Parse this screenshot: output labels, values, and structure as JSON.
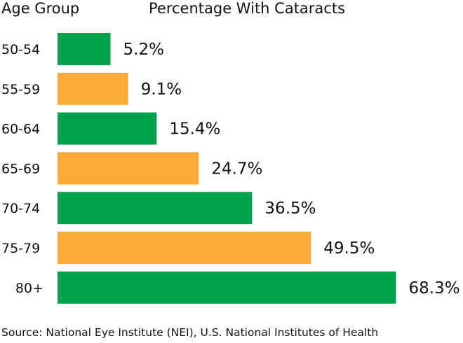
{
  "chart_data": {
    "type": "bar",
    "orientation": "horizontal",
    "column_headers": [
      "Age Group",
      "Percentage With Cataracts"
    ],
    "categories": [
      "50-54",
      "55-59",
      "60-64",
      "65-69",
      "70-74",
      "75-79",
      "80+"
    ],
    "values": [
      5.2,
      9.1,
      15.4,
      24.7,
      36.5,
      49.5,
      68.3
    ],
    "value_labels": [
      "5.2%",
      "9.1%",
      "15.4%",
      "24.7%",
      "36.5%",
      "49.5%",
      "68.3%"
    ],
    "colors": [
      "#00a04d",
      "#fbaa38",
      "#00a04d",
      "#fbaa38",
      "#00a04d",
      "#fbaa38",
      "#00a04d"
    ],
    "grid": false,
    "legend": "none"
  },
  "source": "Source: National Eye Institute (NEI), U.S. National Institutes of Health"
}
